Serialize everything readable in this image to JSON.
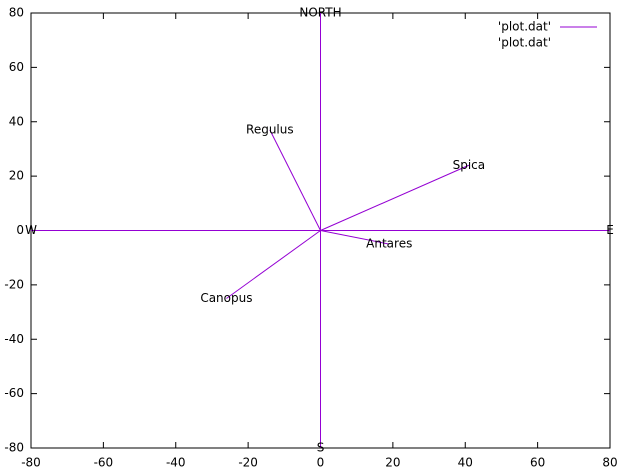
{
  "chart_data": {
    "type": "vector",
    "xlim": [
      -80,
      80
    ],
    "ylim": [
      -80,
      80
    ],
    "xticks": [
      -80,
      -60,
      -40,
      -20,
      0,
      20,
      40,
      60,
      80
    ],
    "yticks": [
      -80,
      -60,
      -40,
      -20,
      0,
      20,
      40,
      60,
      80
    ],
    "series": [
      {
        "name": "'plot.dat'",
        "color": "#9400d3",
        "x": [
          0,
          0,
          -80,
          80,
          -14,
          41,
          19,
          -26
        ],
        "y": [
          80,
          -80,
          0,
          0,
          37,
          24,
          -5,
          -25
        ]
      },
      {
        "name": "'plot.dat'",
        "labels": [
          "NORTH",
          "S",
          "W",
          "E",
          "Regulus",
          "Spica",
          "Antares",
          "Canopus"
        ]
      }
    ]
  }
}
